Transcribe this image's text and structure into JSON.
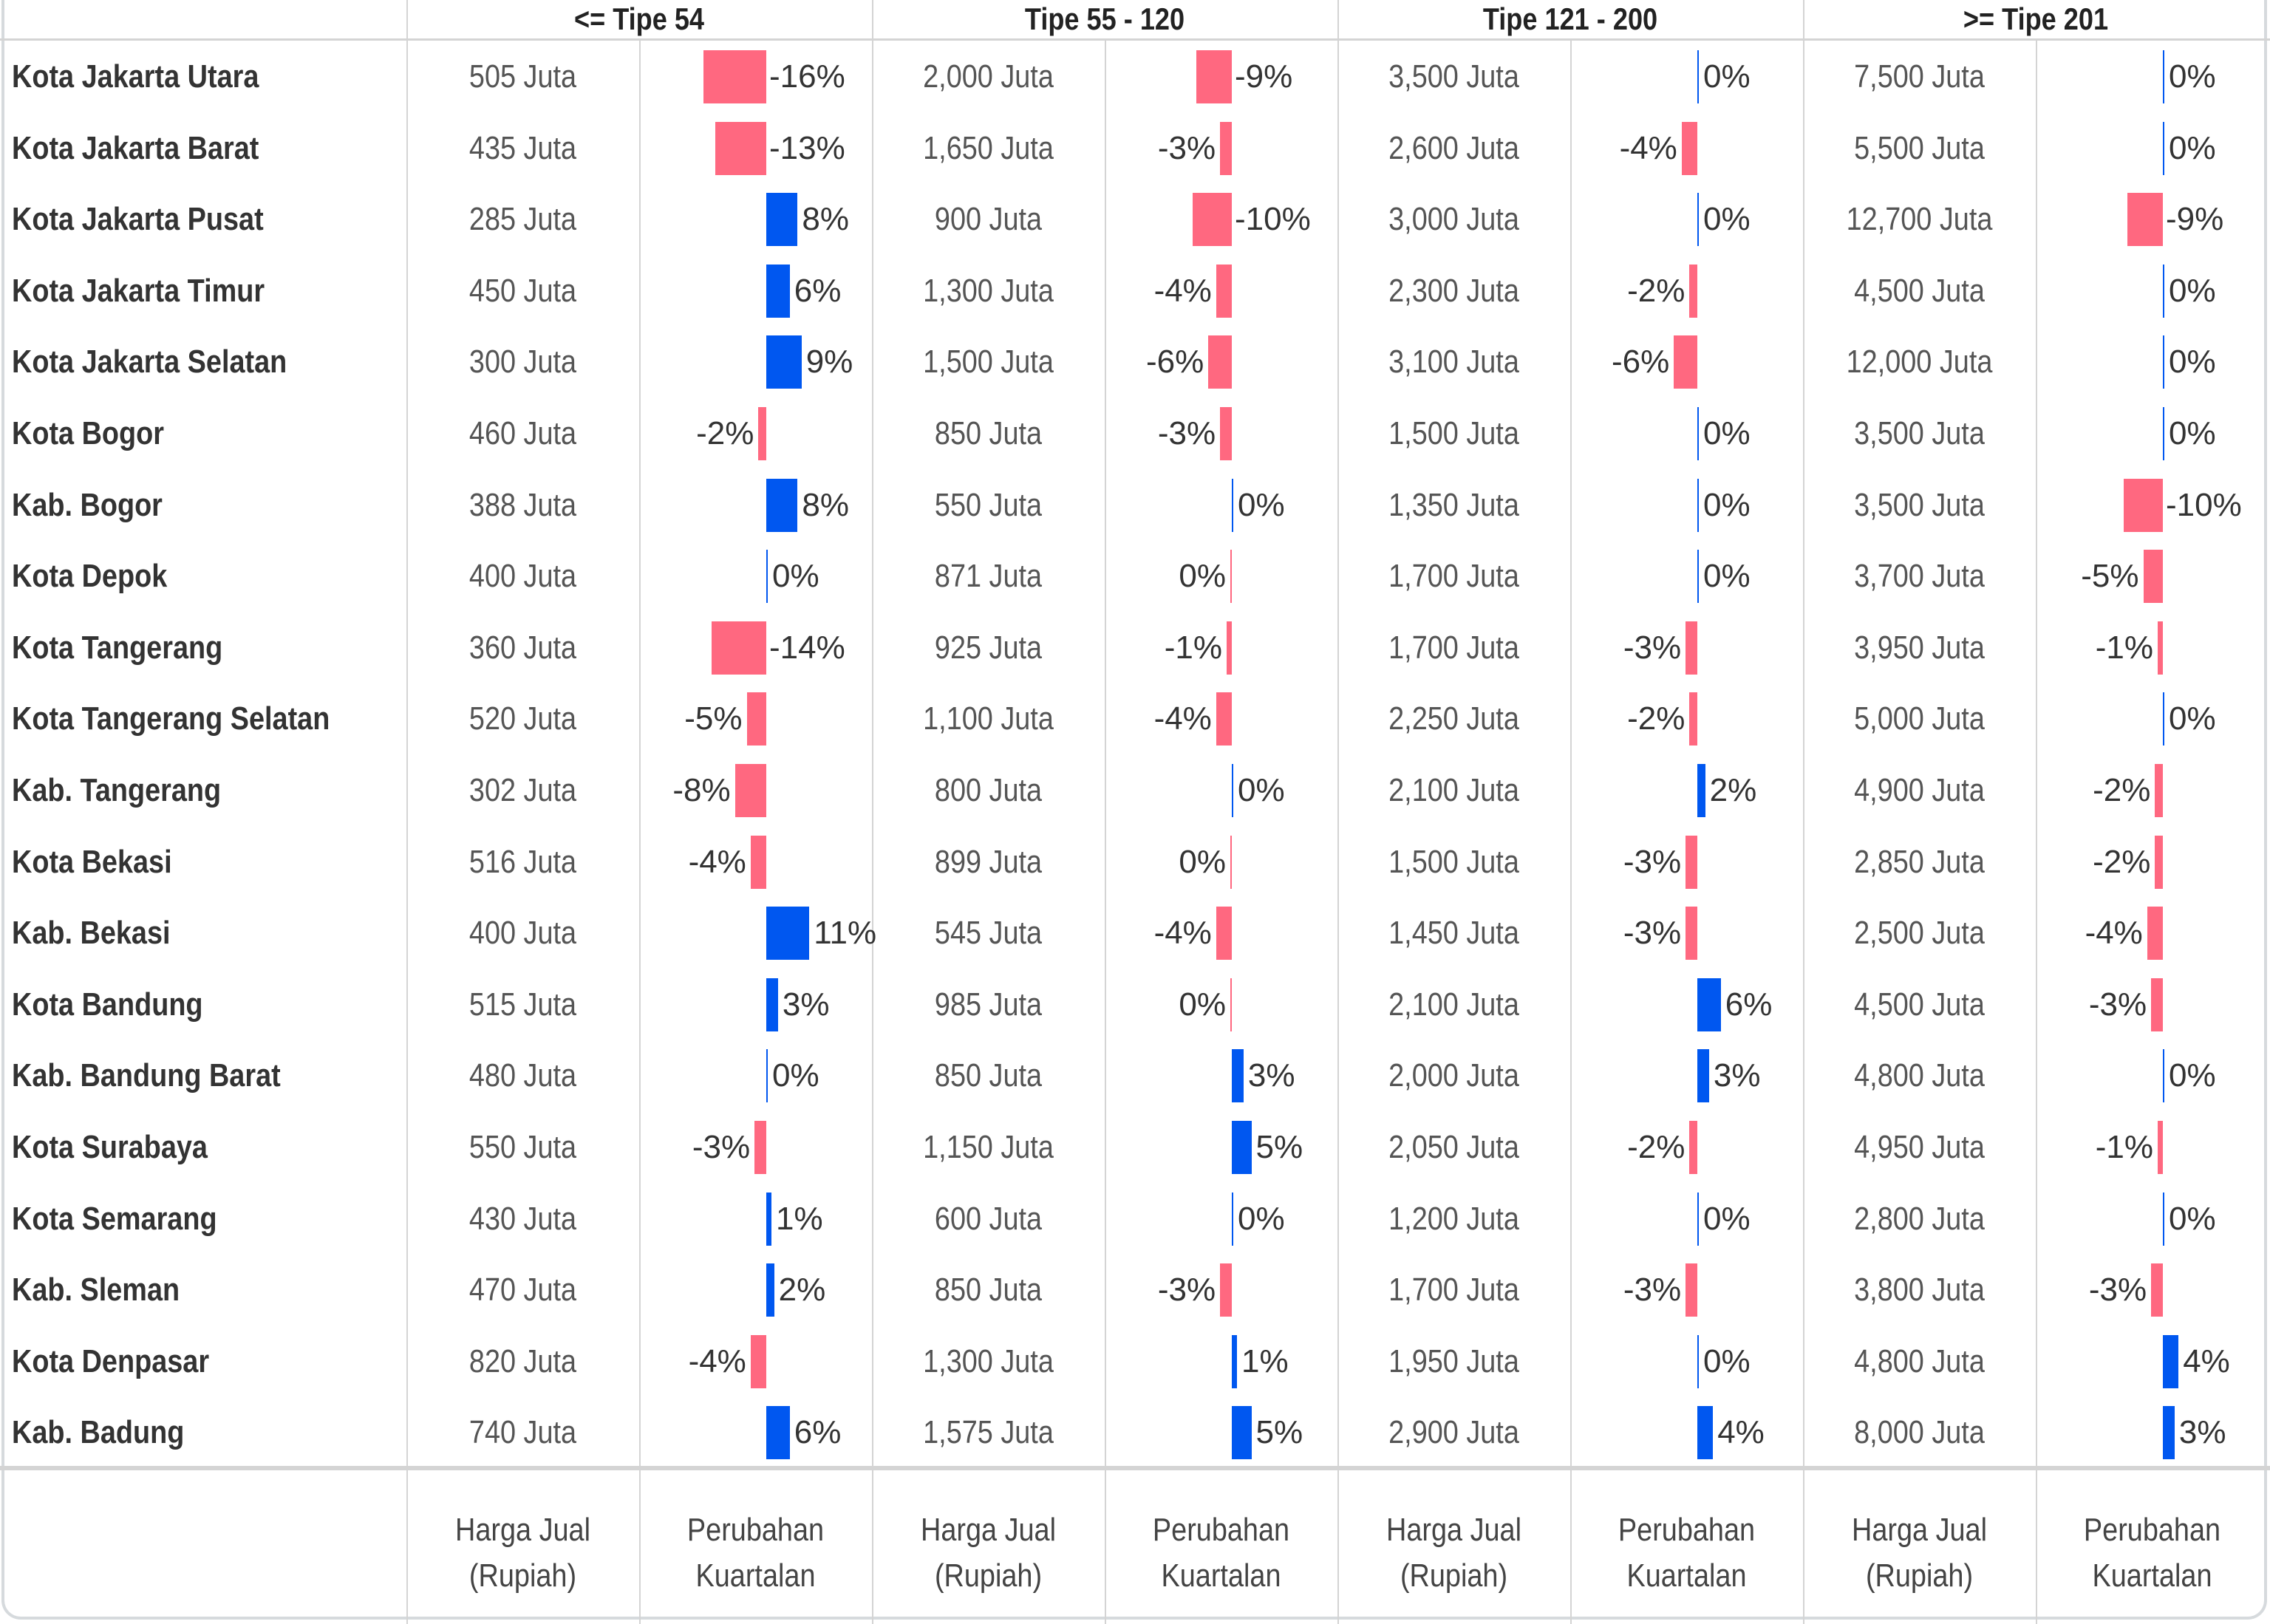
{
  "colors": {
    "positive": "#0057f0",
    "negative": "#ff6880",
    "grid": "#d4d4d4"
  },
  "chart_data": {
    "type": "table",
    "title": "",
    "groups": [
      "<= Tipe 54",
      "Tipe 55 - 120",
      "Tipe 121 - 200",
      ">= Tipe 201"
    ],
    "measures": [
      {
        "label": "Harga Jual (Rupiah)",
        "line1": "Harga Jual",
        "line2": "(Rupiah)"
      },
      {
        "label": "Perubahan Kuartalan",
        "line1": "Perubahan",
        "line2": "Kuartalan"
      }
    ],
    "price_unit": "Juta",
    "rows": [
      {
        "name": "Kota Jakarta Utara",
        "price": [
          "505 Juta",
          "2,000 Juta",
          "3,500 Juta",
          "7,500 Juta"
        ],
        "change": [
          -16,
          -9,
          0,
          0
        ],
        "neg_zero": [
          false,
          false,
          false,
          false
        ]
      },
      {
        "name": "Kota Jakarta Barat",
        "price": [
          "435 Juta",
          "1,650 Juta",
          "2,600 Juta",
          "5,500 Juta"
        ],
        "change": [
          -13,
          -3,
          -4,
          0
        ],
        "neg_zero": [
          false,
          false,
          false,
          false
        ]
      },
      {
        "name": "Kota Jakarta Pusat",
        "price": [
          "285 Juta",
          "900 Juta",
          "3,000 Juta",
          "12,700 Juta"
        ],
        "change": [
          8,
          -10,
          0,
          -9
        ],
        "neg_zero": [
          false,
          false,
          false,
          false
        ]
      },
      {
        "name": "Kota Jakarta Timur",
        "price": [
          "450 Juta",
          "1,300 Juta",
          "2,300 Juta",
          "4,500 Juta"
        ],
        "change": [
          6,
          -4,
          -2,
          0
        ],
        "neg_zero": [
          false,
          false,
          false,
          false
        ]
      },
      {
        "name": "Kota Jakarta Selatan",
        "price": [
          "300 Juta",
          "1,500 Juta",
          "3,100 Juta",
          "12,000 Juta"
        ],
        "change": [
          9,
          -6,
          -6,
          0
        ],
        "neg_zero": [
          false,
          false,
          false,
          false
        ]
      },
      {
        "name": "Kota Bogor",
        "price": [
          "460 Juta",
          "850 Juta",
          "1,500 Juta",
          "3,500 Juta"
        ],
        "change": [
          -2,
          -3,
          0,
          0
        ],
        "neg_zero": [
          false,
          false,
          false,
          false
        ]
      },
      {
        "name": "Kab. Bogor",
        "price": [
          "388 Juta",
          "550 Juta",
          "1,350 Juta",
          "3,500 Juta"
        ],
        "change": [
          8,
          0,
          0,
          -10
        ],
        "neg_zero": [
          false,
          false,
          false,
          false
        ]
      },
      {
        "name": "Kota Depok",
        "price": [
          "400 Juta",
          "871 Juta",
          "1,700 Juta",
          "3,700 Juta"
        ],
        "change": [
          0,
          0,
          0,
          -5
        ],
        "neg_zero": [
          false,
          true,
          false,
          false
        ]
      },
      {
        "name": "Kota Tangerang",
        "price": [
          "360 Juta",
          "925 Juta",
          "1,700 Juta",
          "3,950 Juta"
        ],
        "change": [
          -14,
          -1,
          -3,
          -1
        ],
        "neg_zero": [
          false,
          false,
          false,
          false
        ]
      },
      {
        "name": "Kota Tangerang Selatan",
        "price": [
          "520 Juta",
          "1,100 Juta",
          "2,250 Juta",
          "5,000 Juta"
        ],
        "change": [
          -5,
          -4,
          -2,
          0
        ],
        "neg_zero": [
          false,
          false,
          false,
          false
        ]
      },
      {
        "name": "Kab. Tangerang",
        "price": [
          "302 Juta",
          "800 Juta",
          "2,100 Juta",
          "4,900 Juta"
        ],
        "change": [
          -8,
          0,
          2,
          -2
        ],
        "neg_zero": [
          false,
          false,
          false,
          false
        ]
      },
      {
        "name": "Kota Bekasi",
        "price": [
          "516 Juta",
          "899 Juta",
          "1,500 Juta",
          "2,850 Juta"
        ],
        "change": [
          -4,
          0,
          -3,
          -2
        ],
        "neg_zero": [
          false,
          true,
          false,
          false
        ]
      },
      {
        "name": "Kab. Bekasi",
        "price": [
          "400 Juta",
          "545 Juta",
          "1,450 Juta",
          "2,500 Juta"
        ],
        "change": [
          11,
          -4,
          -3,
          -4
        ],
        "neg_zero": [
          false,
          false,
          false,
          false
        ]
      },
      {
        "name": "Kota Bandung",
        "price": [
          "515 Juta",
          "985 Juta",
          "2,100 Juta",
          "4,500 Juta"
        ],
        "change": [
          3,
          0,
          6,
          -3
        ],
        "neg_zero": [
          false,
          true,
          false,
          false
        ]
      },
      {
        "name": "Kab. Bandung Barat",
        "price": [
          "480 Juta",
          "850 Juta",
          "2,000 Juta",
          "4,800 Juta"
        ],
        "change": [
          0,
          3,
          3,
          0
        ],
        "neg_zero": [
          false,
          false,
          false,
          false
        ]
      },
      {
        "name": "Kota Surabaya",
        "price": [
          "550 Juta",
          "1,150 Juta",
          "2,050 Juta",
          "4,950 Juta"
        ],
        "change": [
          -3,
          5,
          -2,
          -1
        ],
        "neg_zero": [
          false,
          false,
          false,
          false
        ]
      },
      {
        "name": "Kota Semarang",
        "price": [
          "430 Juta",
          "600 Juta",
          "1,200 Juta",
          "2,800 Juta"
        ],
        "change": [
          1,
          0,
          0,
          0
        ],
        "neg_zero": [
          false,
          false,
          false,
          false
        ]
      },
      {
        "name": "Kab. Sleman",
        "price": [
          "470 Juta",
          "850 Juta",
          "1,700 Juta",
          "3,800 Juta"
        ],
        "change": [
          2,
          -3,
          -3,
          -3
        ],
        "neg_zero": [
          false,
          false,
          false,
          false
        ]
      },
      {
        "name": "Kota Denpasar",
        "price": [
          "820 Juta",
          "1,300 Juta",
          "1,950 Juta",
          "4,800 Juta"
        ],
        "change": [
          -4,
          1,
          0,
          4
        ],
        "neg_zero": [
          false,
          false,
          false,
          false
        ]
      },
      {
        "name": "Kab. Badung",
        "price": [
          "740 Juta",
          "1,575 Juta",
          "2,900 Juta",
          "8,000 Juta"
        ],
        "change": [
          6,
          5,
          4,
          3
        ],
        "neg_zero": [
          false,
          false,
          false,
          false
        ]
      }
    ]
  }
}
